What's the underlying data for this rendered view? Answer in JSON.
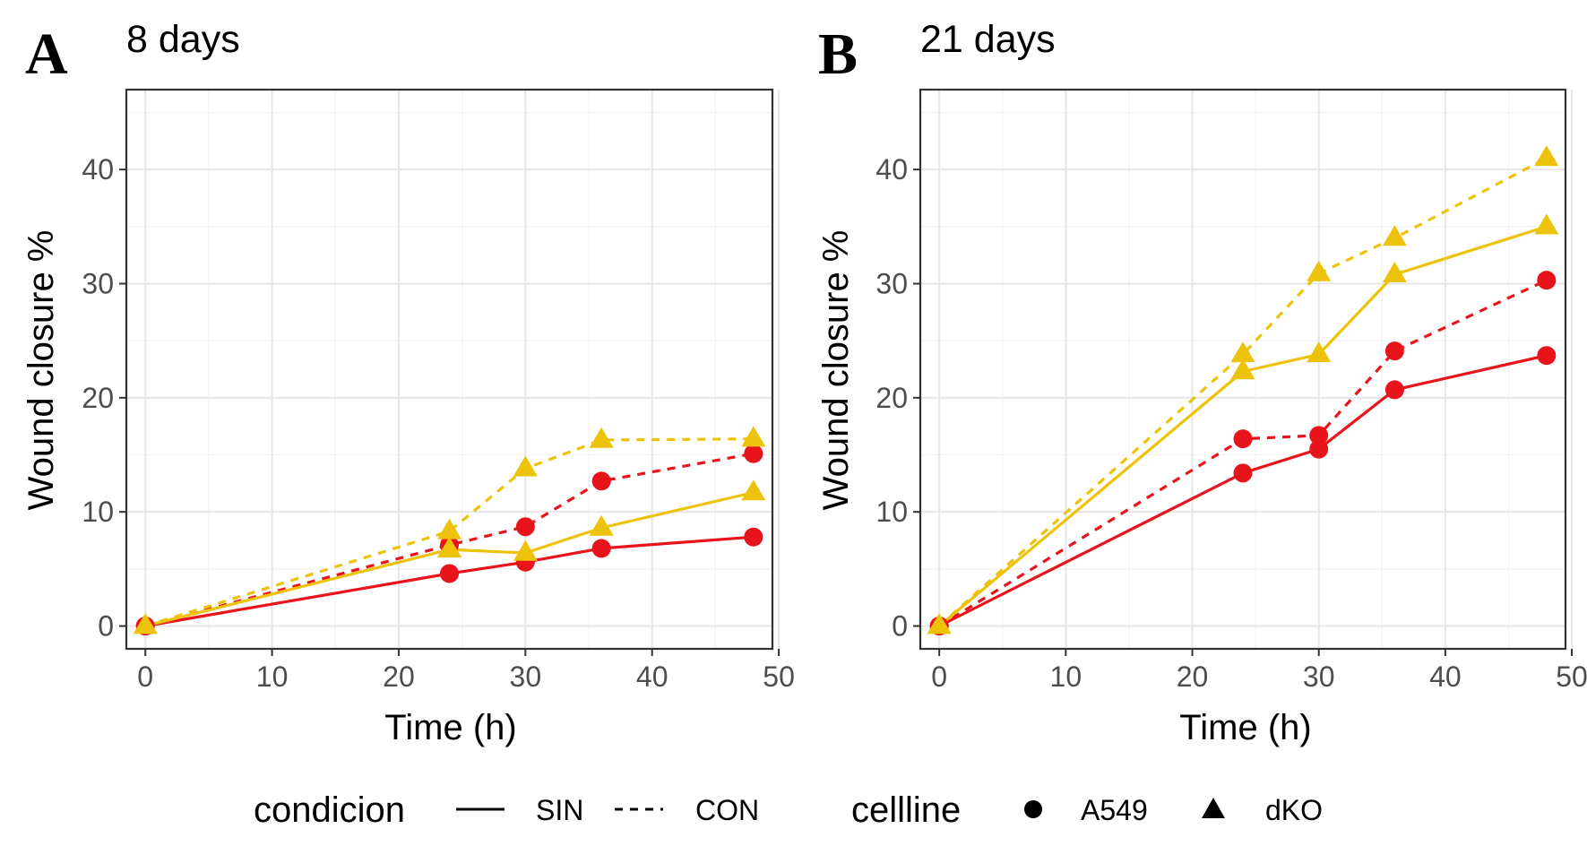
{
  "panels": [
    {
      "letter": "A",
      "title": "8 days",
      "chart_data": {
        "type": "line",
        "title": "8 days",
        "xlabel": "Time (h)",
        "ylabel": "Wound closure %",
        "xlim": [
          -1.5,
          49.5
        ],
        "ylim": [
          -2,
          47
        ],
        "xticks": [
          0,
          10,
          20,
          30,
          40,
          50
        ],
        "yticks": [
          0,
          10,
          20,
          30,
          40
        ],
        "grid": true,
        "x": [
          0,
          24,
          30,
          36,
          48
        ],
        "series": [
          {
            "cellline": "A549",
            "condicion": "SIN",
            "values": [
              0,
              4.6,
              5.6,
              6.8,
              7.8
            ]
          },
          {
            "cellline": "A549",
            "condicion": "CON",
            "values": [
              0,
              7.1,
              8.7,
              12.7,
              15.1
            ]
          },
          {
            "cellline": "dKO",
            "condicion": "SIN",
            "values": [
              0,
              6.7,
              6.4,
              8.6,
              11.7
            ]
          },
          {
            "cellline": "dKO",
            "condicion": "CON",
            "values": [
              0,
              8.3,
              13.8,
              16.3,
              16.4
            ]
          }
        ]
      }
    },
    {
      "letter": "B",
      "title": "21 days",
      "chart_data": {
        "type": "line",
        "title": "21 days",
        "xlabel": "Time (h)",
        "ylabel": "Wound closure %",
        "xlim": [
          -1.5,
          49.5
        ],
        "ylim": [
          -2,
          47
        ],
        "xticks": [
          0,
          10,
          20,
          30,
          40,
          50
        ],
        "yticks": [
          0,
          10,
          20,
          30,
          40
        ],
        "grid": true,
        "x": [
          0,
          24,
          30,
          36,
          48
        ],
        "series": [
          {
            "cellline": "A549",
            "condicion": "SIN",
            "values": [
              0,
              13.4,
              15.5,
              20.7,
              23.7
            ]
          },
          {
            "cellline": "A549",
            "condicion": "CON",
            "values": [
              0,
              16.4,
              16.7,
              24.1,
              30.3
            ]
          },
          {
            "cellline": "dKO",
            "condicion": "SIN",
            "values": [
              0,
              22.3,
              23.8,
              30.8,
              35.0
            ]
          },
          {
            "cellline": "dKO",
            "condicion": "CON",
            "values": [
              0,
              23.8,
              30.9,
              34.0,
              41.0
            ]
          }
        ]
      }
    }
  ],
  "legend": {
    "position": "bottom",
    "linetype_title": "condicion",
    "linetype_items": [
      {
        "label": "SIN",
        "dash": "solid"
      },
      {
        "label": "CON",
        "dash": "dashed"
      }
    ],
    "shape_title": "cellline",
    "shape_items": [
      {
        "label": "A549",
        "shape": "circle"
      },
      {
        "label": "dKO",
        "shape": "triangle"
      }
    ]
  },
  "colors": {
    "A549": "#e8141c",
    "dKO": "#ecc30a",
    "axis": "#333333",
    "tick_label": "#4d4d4d",
    "grid_major": "#e6e6e6",
    "grid_minor": "#f2f2f2",
    "panel_bg": "#ffffff"
  }
}
